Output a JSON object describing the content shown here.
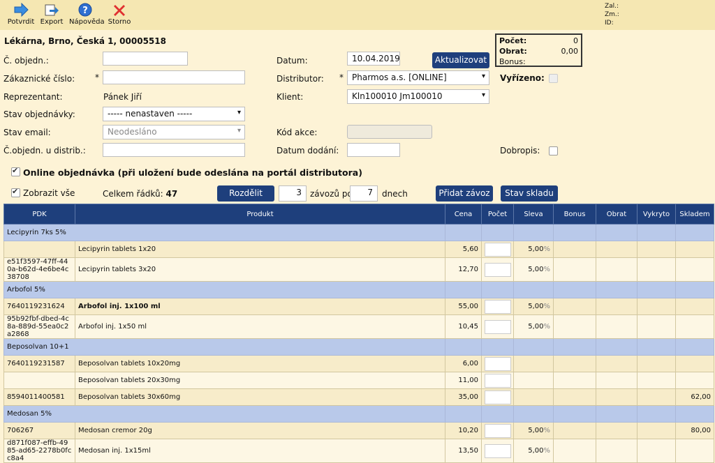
{
  "toolbar": {
    "buttons": [
      {
        "label": "Potvrdit",
        "icon": "arrow-right-icon"
      },
      {
        "label": "Export",
        "icon": "export-icon"
      },
      {
        "label": "Nápověda",
        "icon": "help-icon"
      },
      {
        "label": "Storno",
        "icon": "cancel-icon"
      }
    ],
    "meta": {
      "zal": "Zal.:",
      "zm": "Zm.:",
      "id": "ID:"
    }
  },
  "header": {
    "title": "Lékárna, Brno, Česká 1, 00005518",
    "order_no_label": "Č. objedn.:",
    "order_no_value": "",
    "customer_no_label": "Zákaznické číslo:",
    "customer_no_value": "",
    "rep_label": "Reprezentant:",
    "rep_value": "Pánek Jiří",
    "order_state_label": "Stav objednávky:",
    "order_state_value": "----- nenastaven -----",
    "email_state_label": "Stav email:",
    "email_state_value": "Neodesláno",
    "distrib_order_label": "Č.objedn. u distrib.:",
    "date_label": "Datum:",
    "date_value": "10.04.2019",
    "refresh_label": "Aktualizovat",
    "distributor_label": "Distributor:",
    "distributor_value": "Pharmos a.s. [ONLINE]",
    "client_label": "Klient:",
    "client_value": "Kln100010 Jm100010",
    "action_code_label": "Kód akce:",
    "delivery_date_label": "Datum dodání:",
    "done_label": "Vyřízeno:",
    "credit_label": "Dobropis:",
    "summary": {
      "count_label": "Počet:",
      "count_value": "0",
      "turnover_label": "Obrat:",
      "turnover_value": "0,00",
      "bonus_label": "Bonus:",
      "bonus_value": ""
    },
    "online_label": "Online objednávka (při uložení bude odeslána na portál distributora)",
    "show_all_label": "Zobrazit vše",
    "rows_total_label": "Celkem řádků:",
    "rows_total_value": "47",
    "split_label": "Rozdělit",
    "split_count": "3",
    "split_mid_label": "závozů po",
    "split_days": "7",
    "split_end_label": "dnech",
    "add_delivery_label": "Přidat závoz",
    "stock_label": "Stav skladu"
  },
  "table": {
    "columns": [
      "PDK",
      "Produkt",
      "Cena",
      "Počet",
      "Sleva",
      "Bonus",
      "Obrat",
      "Vykryto",
      "Skladem"
    ],
    "rows": [
      {
        "type": "group",
        "name": "Lecipyrin 7ks 5%"
      },
      {
        "type": "item",
        "pdk": "",
        "product": "Lecipyrin tablets 1x20",
        "price": "5,60",
        "discount": "5,00",
        "stock": "",
        "bold": false
      },
      {
        "type": "item",
        "pdk": "e51f3597-47ff-440a-b62d-4e6be4c38708",
        "product": "Lecipyrin tablets 3x20",
        "price": "12,70",
        "discount": "5,00",
        "stock": "",
        "bold": false
      },
      {
        "type": "group",
        "name": "Arbofol 5%"
      },
      {
        "type": "item",
        "pdk": "7640119231624",
        "product": "Arbofol inj. 1x100 ml",
        "price": "55,00",
        "discount": "5,00",
        "stock": "",
        "bold": true
      },
      {
        "type": "item",
        "pdk": "95b92fbf-dbed-4c8a-889d-55ea0c2a2868",
        "product": "Arbofol inj. 1x50 ml",
        "price": "10,45",
        "discount": "5,00",
        "stock": "",
        "bold": false
      },
      {
        "type": "group",
        "name": "Beposolvan 10+1"
      },
      {
        "type": "item",
        "pdk": "7640119231587",
        "product": "Beposolvan tablets 10x20mg",
        "price": "6,00",
        "discount": "",
        "stock": "",
        "bold": false
      },
      {
        "type": "item",
        "pdk": "",
        "product": "Beposolvan tablets 20x30mg",
        "price": "11,00",
        "discount": "",
        "stock": "",
        "bold": false
      },
      {
        "type": "item",
        "pdk": "8594011400581",
        "product": "Beposolvan tablets 30x60mg",
        "price": "35,00",
        "discount": "",
        "stock": "62,00",
        "bold": false
      },
      {
        "type": "group",
        "name": "Medosan 5%"
      },
      {
        "type": "item",
        "pdk": "706267",
        "product": "Medosan cremor 20g",
        "price": "10,20",
        "discount": "5,00",
        "stock": "80,00",
        "bold": false
      },
      {
        "type": "item",
        "pdk": "d871f087-effb-4985-ad65-2278b0fcc8a4",
        "product": "Medosan inj. 1x15ml",
        "price": "13,50",
        "discount": "5,00",
        "stock": "",
        "bold": false
      }
    ]
  }
}
